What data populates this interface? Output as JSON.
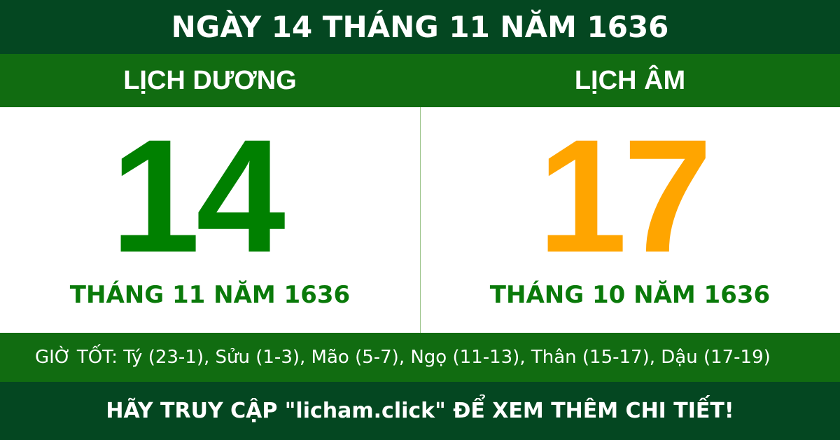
{
  "title": "NGÀY 14 THÁNG 11 NĂM 1636",
  "solar": {
    "heading": "LỊCH DƯƠNG",
    "day": "14",
    "month_year": "THÁNG 11 NĂM 1636",
    "color": "#008000"
  },
  "lunar": {
    "heading": "LỊCH ÂM",
    "day": "17",
    "month_year": "THÁNG 10 NĂM 1636",
    "color": "#FFA500"
  },
  "good_hours": "GIỜ TỐT: Tý (23-1), Sửu (1-3), Mão (5-7), Ngọ (11-13), Thân (15-17), Dậu (17-19)",
  "footer": "HÃY TRUY CẬP \"licham.click\" ĐỂ XEM THÊM CHI TIẾT!",
  "colors": {
    "dark_green": "#044721",
    "green": "#116c11"
  }
}
